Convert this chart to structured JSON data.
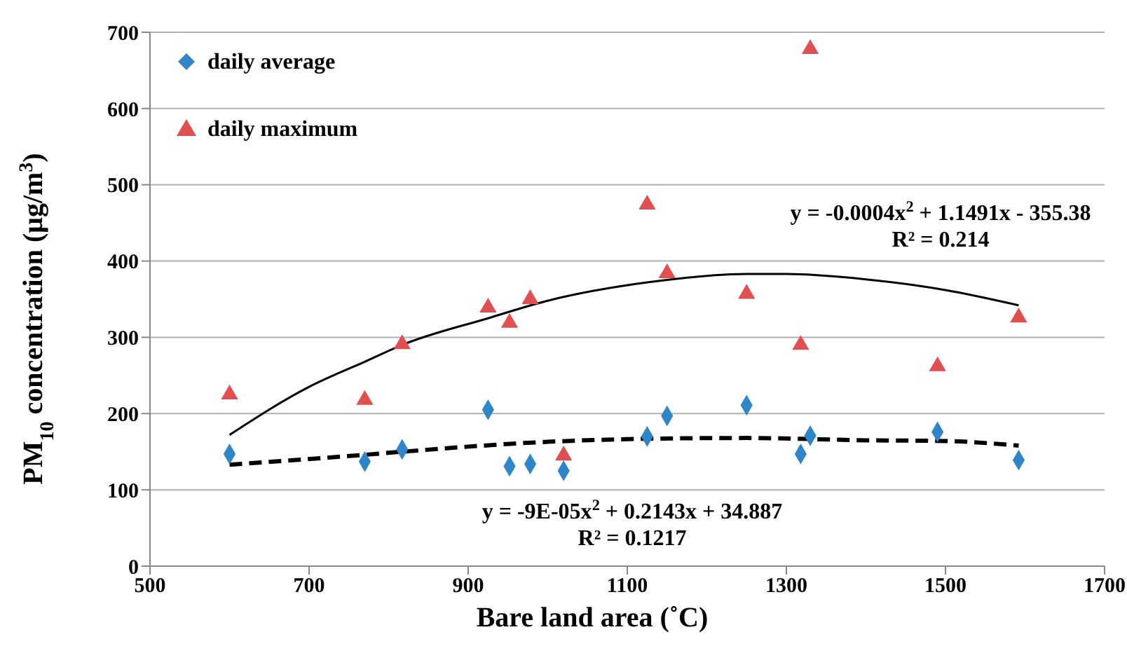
{
  "chart_data": {
    "type": "scatter",
    "xlabel": "Bare land area (˚C)",
    "ylabel": "PM$_{10}$ concentration (μg/m$^{3}$)",
    "xlim": [
      500,
      1700
    ],
    "xticks": [
      500,
      700,
      900,
      1100,
      1300,
      1500,
      1700
    ],
    "ylim": [
      0,
      700
    ],
    "yticks": [
      0,
      100,
      200,
      300,
      400,
      500,
      600,
      700
    ],
    "grid": "y",
    "legend": "top left",
    "series": [
      {
        "name": "daily average",
        "marker": "diamond",
        "color": "#2e86c8",
        "x": [
          600,
          770,
          817,
          925,
          952,
          978,
          1020,
          1125,
          1150,
          1250,
          1318,
          1330,
          1490,
          1592
        ],
        "values": [
          147,
          137,
          153,
          205,
          131,
          134,
          125,
          170,
          197,
          211,
          147,
          171,
          176,
          139
        ]
      },
      {
        "name": "daily maximum",
        "marker": "triangle",
        "color": "#e05050",
        "x": [
          600,
          770,
          817,
          925,
          952,
          978,
          1020,
          1125,
          1150,
          1250,
          1318,
          1330,
          1490,
          1592
        ],
        "values": [
          225,
          218,
          291,
          339,
          319,
          350,
          145,
          474,
          384,
          357,
          290,
          678,
          262,
          326
        ]
      },
      {
        "type": "line",
        "marker": "none",
        "line_style": "solid",
        "color": "#000000",
        "x": [
          600,
          700,
          770,
          817,
          925,
          1000,
          1125,
          1250,
          1300,
          1400,
          1500,
          1592
        ],
        "values": [
          172,
          235,
          268,
          290,
          325,
          348,
          372,
          383,
          383,
          376,
          362,
          342
        ]
      },
      {
        "type": "line",
        "marker": "none",
        "line_style": "dashed",
        "color": "#000000",
        "x": [
          600,
          770,
          817,
          1000,
          1125,
          1250,
          1400,
          1500,
          1592
        ],
        "values": [
          133,
          146,
          150,
          163,
          167,
          168,
          165,
          164,
          158
        ]
      }
    ],
    "annotations": [
      "y = -0.0004x$^{2}$ + 1.1491x - 355.38",
      "R² = 0.214",
      "y = -9E-05x$^{2}$ + 0.2143x + 34.887",
      "R² = 0.1217"
    ]
  }
}
